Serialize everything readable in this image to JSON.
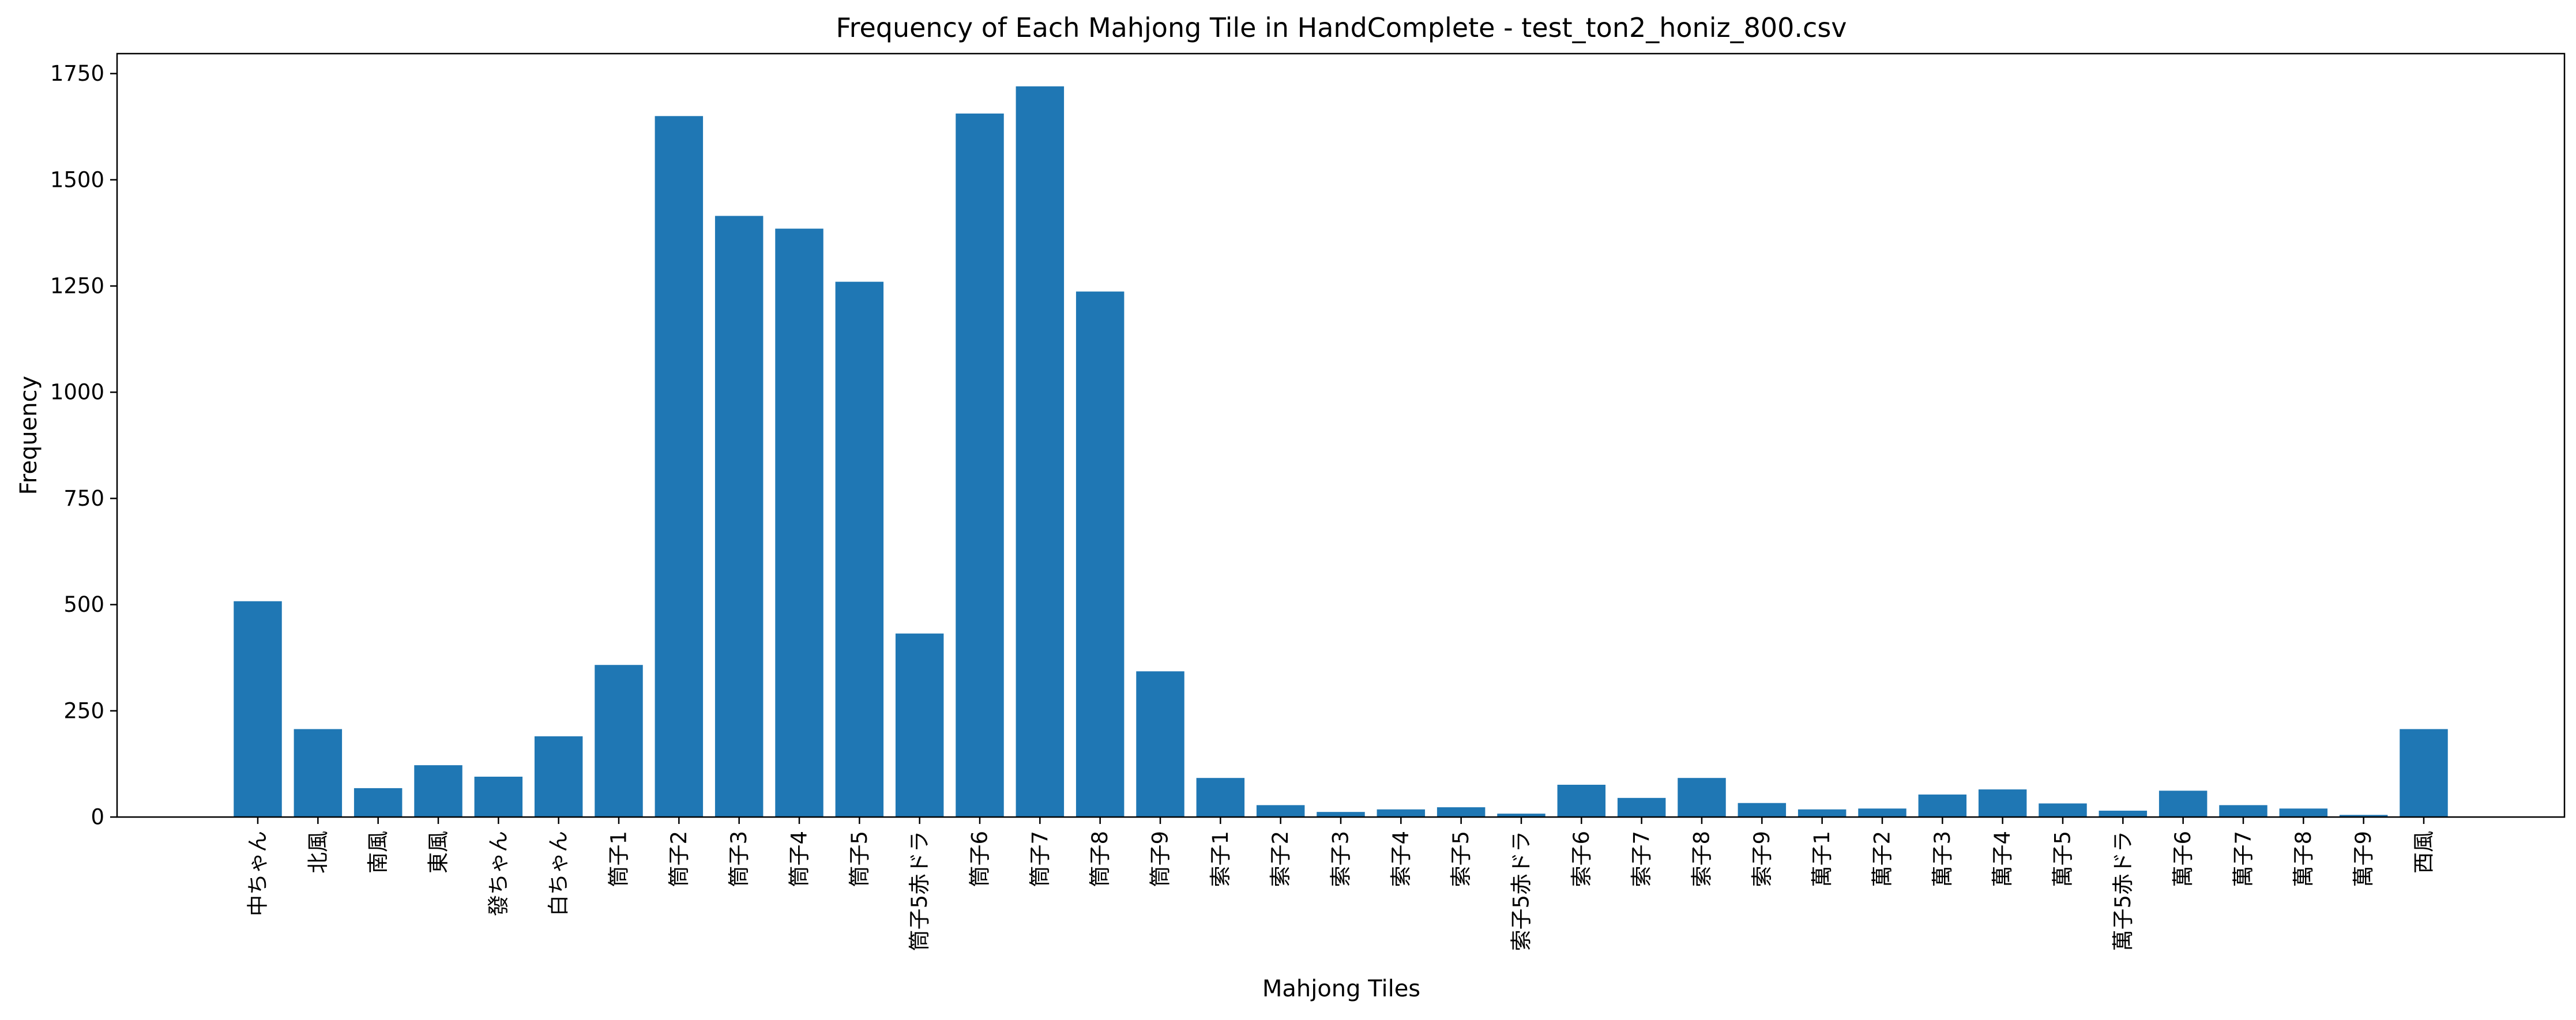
{
  "chart_data": {
    "type": "bar",
    "title": "Frequency of Each Mahjong Tile in HandComplete - test_ton2_honiz_800.csv",
    "xlabel": "Mahjong Tiles",
    "ylabel": "Frequency",
    "ylim": [
      0,
      1797
    ],
    "yticks": [
      "0",
      "250",
      "500",
      "750",
      "1000",
      "1250",
      "1500",
      "1750"
    ],
    "grid": false,
    "bar_color": "#1f77b4",
    "categories": [
      "中ちゃん",
      "北風",
      "南風",
      "東風",
      "發ちゃん",
      "白ちゃん",
      "筒子1",
      "筒子2",
      "筒子3",
      "筒子4",
      "筒子5",
      "筒子5赤ドラ",
      "筒子6",
      "筒子7",
      "筒子8",
      "筒子9",
      "索子1",
      "索子2",
      "索子3",
      "索子4",
      "索子5",
      "索子5赤ドラ",
      "索子6",
      "索子7",
      "索子8",
      "索子9",
      "萬子1",
      "萬子2",
      "萬子3",
      "萬子4",
      "萬子5",
      "萬子5赤ドラ",
      "萬子6",
      "萬子7",
      "萬子8",
      "萬子9",
      "西風"
    ],
    "values": [
      508,
      207,
      68,
      122,
      95,
      190,
      358,
      1650,
      1415,
      1385,
      1260,
      432,
      1656,
      1720,
      1237,
      343,
      92,
      28,
      12,
      18,
      23,
      8,
      76,
      45,
      92,
      33,
      18,
      20,
      53,
      65,
      32,
      15,
      62,
      28,
      20,
      5,
      207
    ]
  }
}
